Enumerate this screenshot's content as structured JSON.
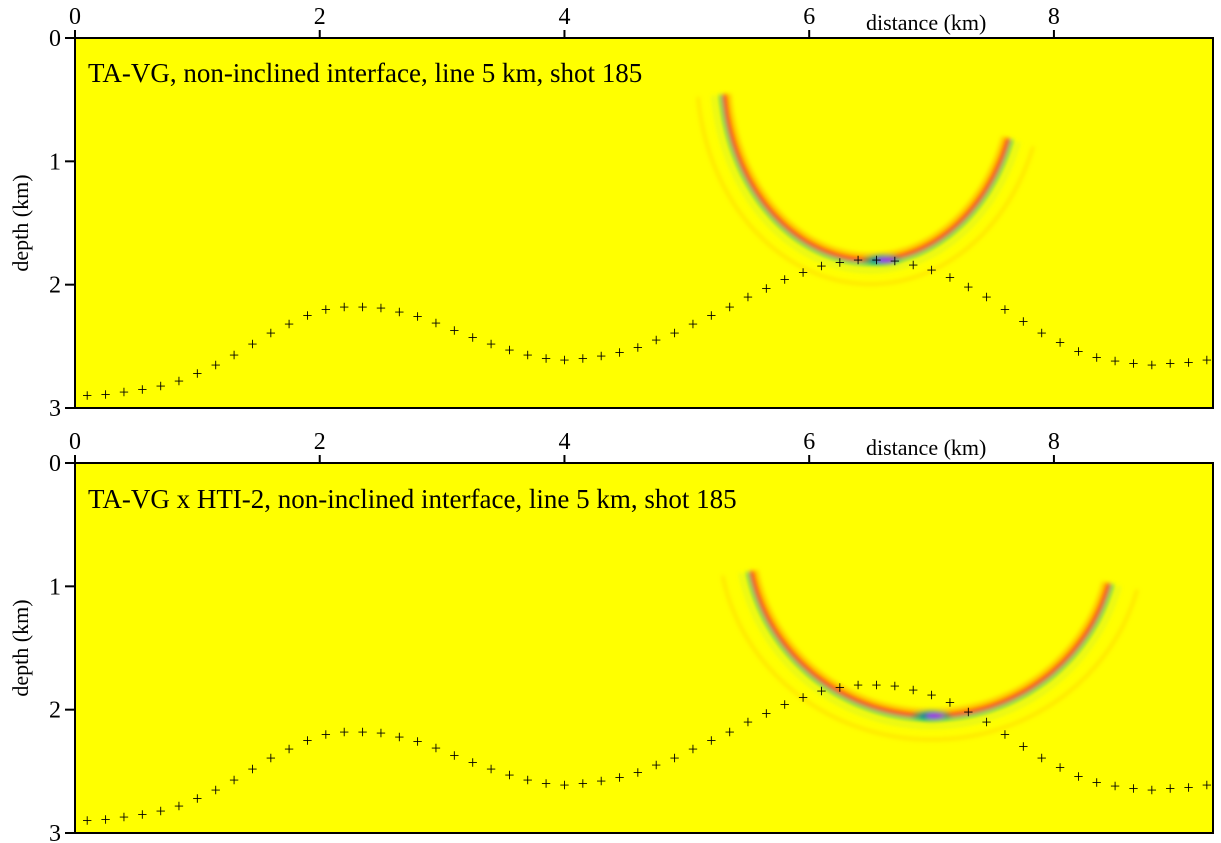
{
  "chart_data": [
    {
      "type": "heatmap",
      "title": "TA-VG, non-inclined interface, line 5 km, shot 185",
      "xlabel": "distance (km)",
      "ylabel": "depth (km)",
      "xlim": [
        0,
        9.3
      ],
      "ylim": [
        0,
        3
      ],
      "y_inverted": true,
      "x_ticks": [
        "0",
        "2",
        "4",
        "6",
        "8"
      ],
      "y_ticks": [
        "0",
        "1",
        "2",
        "3"
      ],
      "background_color": "#ffff00",
      "colormap": [
        "#0000ff",
        "#00cc88",
        "#ffff00",
        "#ff8800",
        "#ff0000"
      ],
      "grid": false,
      "wavefront": {
        "center_x": 6.5,
        "center_y": 0.3,
        "radius_x": 1.2,
        "radius_y": 1.5,
        "arc_from_deg": 20,
        "arc_to_deg": 175,
        "focus_x": 6.6,
        "focus_y": 1.8
      },
      "interface_points": {
        "marker": "+",
        "x": [
          0.1,
          0.25,
          0.4,
          0.55,
          0.7,
          0.85,
          1.0,
          1.15,
          1.3,
          1.45,
          1.6,
          1.75,
          1.9,
          2.05,
          2.2,
          2.35,
          2.5,
          2.65,
          2.8,
          2.95,
          3.1,
          3.25,
          3.4,
          3.55,
          3.7,
          3.85,
          4.0,
          4.15,
          4.3,
          4.45,
          4.6,
          4.75,
          4.9,
          5.05,
          5.2,
          5.35,
          5.5,
          5.65,
          5.8,
          5.95,
          6.1,
          6.25,
          6.4,
          6.55,
          6.7,
          6.85,
          7.0,
          7.15,
          7.3,
          7.45,
          7.6,
          7.75,
          7.9,
          8.05,
          8.2,
          8.35,
          8.5,
          8.65,
          8.8,
          8.95,
          9.1,
          9.25
        ],
        "y": [
          2.9,
          2.89,
          2.87,
          2.85,
          2.82,
          2.78,
          2.72,
          2.65,
          2.57,
          2.48,
          2.39,
          2.32,
          2.25,
          2.2,
          2.18,
          2.18,
          2.19,
          2.22,
          2.26,
          2.31,
          2.37,
          2.43,
          2.48,
          2.53,
          2.57,
          2.6,
          2.61,
          2.6,
          2.58,
          2.55,
          2.51,
          2.45,
          2.39,
          2.32,
          2.25,
          2.18,
          2.1,
          2.03,
          1.96,
          1.9,
          1.85,
          1.82,
          1.8,
          1.8,
          1.81,
          1.84,
          1.88,
          1.94,
          2.02,
          2.1,
          2.2,
          2.3,
          2.39,
          2.47,
          2.54,
          2.59,
          2.62,
          2.64,
          2.65,
          2.64,
          2.63,
          2.61
        ]
      }
    },
    {
      "type": "heatmap",
      "title": "TA-VG x HTI-2, non-inclined interface, line 5 km, shot 185",
      "xlabel": "distance (km)",
      "ylabel": "depth (km)",
      "xlim": [
        0,
        9.3
      ],
      "ylim": [
        0,
        3
      ],
      "y_inverted": true,
      "x_ticks": [
        "0",
        "2",
        "4",
        "6",
        "8"
      ],
      "y_ticks": [
        "0",
        "1",
        "2",
        "3"
      ],
      "background_color": "#ffff00",
      "colormap": [
        "#0000ff",
        "#00cc88",
        "#ffff00",
        "#ff8800",
        "#ff0000"
      ],
      "grid": false,
      "wavefront": {
        "center_x": 7.0,
        "center_y": 0.6,
        "radius_x": 1.5,
        "radius_y": 1.45,
        "arc_from_deg": 15,
        "arc_to_deg": 170,
        "focus_x": 7.0,
        "focus_y": 2.05
      },
      "interface_points": {
        "marker": "+",
        "x": [
          0.1,
          0.25,
          0.4,
          0.55,
          0.7,
          0.85,
          1.0,
          1.15,
          1.3,
          1.45,
          1.6,
          1.75,
          1.9,
          2.05,
          2.2,
          2.35,
          2.5,
          2.65,
          2.8,
          2.95,
          3.1,
          3.25,
          3.4,
          3.55,
          3.7,
          3.85,
          4.0,
          4.15,
          4.3,
          4.45,
          4.6,
          4.75,
          4.9,
          5.05,
          5.2,
          5.35,
          5.5,
          5.65,
          5.8,
          5.95,
          6.1,
          6.25,
          6.4,
          6.55,
          6.7,
          6.85,
          7.0,
          7.15,
          7.3,
          7.45,
          7.6,
          7.75,
          7.9,
          8.05,
          8.2,
          8.35,
          8.5,
          8.65,
          8.8,
          8.95,
          9.1,
          9.25
        ],
        "y": [
          2.9,
          2.89,
          2.87,
          2.85,
          2.82,
          2.78,
          2.72,
          2.65,
          2.57,
          2.48,
          2.39,
          2.32,
          2.25,
          2.2,
          2.18,
          2.18,
          2.19,
          2.22,
          2.26,
          2.31,
          2.37,
          2.43,
          2.48,
          2.53,
          2.57,
          2.6,
          2.61,
          2.6,
          2.58,
          2.55,
          2.51,
          2.45,
          2.39,
          2.32,
          2.25,
          2.18,
          2.1,
          2.03,
          1.96,
          1.9,
          1.85,
          1.82,
          1.8,
          1.8,
          1.81,
          1.84,
          1.88,
          1.94,
          2.02,
          2.1,
          2.2,
          2.3,
          2.39,
          2.47,
          2.54,
          2.59,
          2.62,
          2.64,
          2.65,
          2.64,
          2.63,
          2.61
        ]
      }
    }
  ]
}
